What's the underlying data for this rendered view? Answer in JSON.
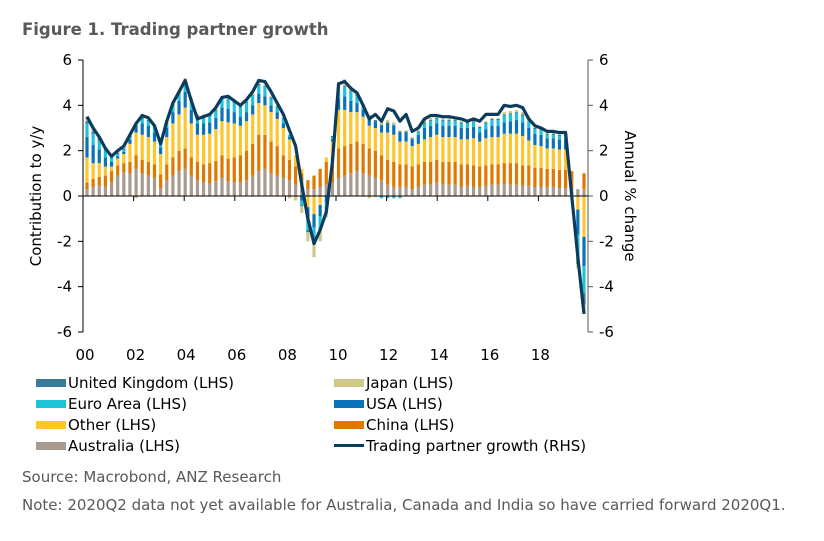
{
  "figure": {
    "title": "Figure 1. Trading partner growth",
    "source": "Source: Macrobond, ANZ Research",
    "note": "Note: 2020Q2 data not yet available for Australia, Canada and India so have carried forward 2020Q1."
  },
  "chart_data": {
    "type": "bar",
    "title": "Figure 1. Trading partner growth",
    "xlabel": "",
    "ylabel": "Contribution to y/y",
    "y2label": "Annual % change",
    "ylim": [
      -6,
      6
    ],
    "y2lim": [
      -6,
      6
    ],
    "yticks": [
      "6",
      "4",
      "2",
      "0",
      "-2",
      "-4",
      "-6"
    ],
    "y2ticks": [
      "6",
      "4",
      "2",
      "0",
      "-2",
      "-4",
      "-6"
    ],
    "xticks": [
      "00",
      "02",
      "04",
      "06",
      "08",
      "10",
      "12",
      "14",
      "16",
      "18"
    ],
    "x_frequency": "quarterly",
    "x_start": "2000Q1",
    "x_end": "2020Q2",
    "stacked": true,
    "grid": false,
    "legend_position": "bottom",
    "colors": {
      "United Kingdom (LHS)": "#3a7a9a",
      "Japan (LHS)": "#cfc888",
      "Euro Area (LHS)": "#1ec3d8",
      "USA (LHS)": "#0a72b8",
      "Other (LHS)": "#ffc52e",
      "China (LHS)": "#e07800",
      "Australia (LHS)": "#a89a8e",
      "Trading partner growth (RHS)": "#0b3c5d"
    },
    "legend": [
      {
        "name": "United Kingdom (LHS)",
        "kind": "bar"
      },
      {
        "name": "Japan (LHS)",
        "kind": "bar"
      },
      {
        "name": "Euro Area (LHS)",
        "kind": "bar"
      },
      {
        "name": "USA (LHS)",
        "kind": "bar"
      },
      {
        "name": "Other (LHS)",
        "kind": "bar"
      },
      {
        "name": "China (LHS)",
        "kind": "bar"
      },
      {
        "name": "Australia (LHS)",
        "kind": "bar"
      },
      {
        "name": "Trading partner growth (RHS)",
        "kind": "line"
      }
    ],
    "line_series": {
      "name": "Trading partner growth (RHS)",
      "values": [
        3.5,
        3.0,
        2.6,
        2.1,
        1.75,
        2.0,
        2.2,
        2.7,
        3.2,
        3.55,
        3.45,
        3.1,
        2.3,
        3.3,
        4.1,
        4.6,
        5.1,
        4.2,
        3.4,
        3.5,
        3.6,
        3.9,
        4.35,
        4.4,
        4.2,
        4.0,
        4.25,
        4.6,
        5.1,
        5.05,
        4.6,
        4.1,
        3.6,
        2.9,
        2.2,
        0.5,
        -1.0,
        -2.1,
        -1.5,
        -0.7,
        1.5,
        4.95,
        5.05,
        4.75,
        4.55,
        4.0,
        3.4,
        3.6,
        3.3,
        3.85,
        3.75,
        3.3,
        3.6,
        2.85,
        3.0,
        3.4,
        3.55,
        3.55,
        3.5,
        3.5,
        3.45,
        3.4,
        3.3,
        3.4,
        3.3,
        3.6,
        3.6,
        3.6,
        4.0,
        3.95,
        4.0,
        3.9,
        3.4,
        3.1,
        3.0,
        2.85,
        2.85,
        2.8,
        2.8,
        0.0,
        -2.7,
        -5.2
      ]
    },
    "bar_series": [
      {
        "name": "Australia (LHS)",
        "values": [
          0.3,
          0.4,
          0.45,
          0.4,
          0.6,
          0.9,
          1.05,
          1.0,
          1.2,
          1.0,
          0.9,
          0.8,
          0.35,
          0.7,
          0.9,
          1.1,
          1.2,
          0.9,
          0.7,
          0.6,
          0.55,
          0.65,
          0.8,
          0.65,
          0.6,
          0.6,
          0.7,
          0.9,
          1.1,
          1.2,
          1.0,
          0.9,
          0.8,
          0.7,
          0.5,
          0.4,
          0.3,
          0.3,
          0.4,
          0.5,
          0.6,
          0.8,
          0.9,
          1.0,
          1.1,
          1.0,
          0.9,
          0.8,
          0.7,
          0.5,
          0.4,
          0.4,
          0.4,
          0.3,
          0.4,
          0.5,
          0.5,
          0.6,
          0.5,
          0.5,
          0.5,
          0.4,
          0.45,
          0.4,
          0.4,
          0.45,
          0.5,
          0.5,
          0.55,
          0.5,
          0.5,
          0.45,
          0.45,
          0.4,
          0.4,
          0.4,
          0.4,
          0.35,
          0.35,
          0.3,
          0.3,
          0.3
        ]
      },
      {
        "name": "China (LHS)",
        "values": [
          0.3,
          0.35,
          0.4,
          0.5,
          0.5,
          0.45,
          0.4,
          0.5,
          0.6,
          0.6,
          0.6,
          0.6,
          0.6,
          0.7,
          0.8,
          0.9,
          0.9,
          0.8,
          0.8,
          0.8,
          0.9,
          0.9,
          1.0,
          1.0,
          1.1,
          1.2,
          1.3,
          1.4,
          1.6,
          1.5,
          1.4,
          1.3,
          1.0,
          0.9,
          0.8,
          0.6,
          0.4,
          0.6,
          0.8,
          1.0,
          1.2,
          1.3,
          1.3,
          1.3,
          1.3,
          1.3,
          1.2,
          1.2,
          1.1,
          1.1,
          1.1,
          1.0,
          1.0,
          1.0,
          1.0,
          1.0,
          1.0,
          1.0,
          1.0,
          1.0,
          1.0,
          1.0,
          0.95,
          0.95,
          0.9,
          0.9,
          0.9,
          0.9,
          0.9,
          0.95,
          0.95,
          0.9,
          0.9,
          0.85,
          0.85,
          0.8,
          0.8,
          0.8,
          0.8,
          0.8,
          0.0,
          0.7
        ]
      },
      {
        "name": "Other (LHS)",
        "values": [
          1.1,
          0.7,
          0.6,
          0.4,
          0.2,
          0.3,
          0.4,
          0.8,
          1.0,
          1.1,
          1.1,
          1.0,
          0.9,
          1.2,
          1.5,
          1.6,
          1.8,
          1.5,
          1.2,
          1.3,
          1.3,
          1.4,
          1.5,
          1.6,
          1.5,
          1.3,
          1.3,
          1.3,
          1.4,
          1.3,
          1.3,
          1.2,
          1.2,
          0.9,
          0.5,
          0.2,
          -0.5,
          -0.8,
          -0.4,
          0.2,
          0.6,
          1.7,
          1.6,
          1.4,
          1.3,
          1.2,
          1.0,
          1.0,
          1.0,
          1.2,
          1.2,
          1.0,
          1.0,
          0.9,
          0.9,
          1.0,
          1.1,
          1.1,
          1.1,
          1.1,
          1.1,
          1.1,
          1.1,
          1.2,
          1.1,
          1.2,
          1.2,
          1.2,
          1.3,
          1.3,
          1.3,
          1.3,
          1.1,
          1.0,
          0.95,
          0.9,
          0.9,
          0.9,
          0.9,
          0.0,
          -0.6,
          -1.8
        ]
      },
      {
        "name": "USA (LHS)",
        "values": [
          0.9,
          0.8,
          0.6,
          0.4,
          0.2,
          0.1,
          0.1,
          0.2,
          0.3,
          0.5,
          0.5,
          0.4,
          0.3,
          0.4,
          0.5,
          0.6,
          0.7,
          0.6,
          0.5,
          0.5,
          0.5,
          0.5,
          0.6,
          0.6,
          0.5,
          0.4,
          0.4,
          0.4,
          0.4,
          0.4,
          0.3,
          0.3,
          0.2,
          0.1,
          0.0,
          -0.2,
          -0.5,
          -0.6,
          -0.5,
          -0.3,
          0.1,
          0.5,
          0.6,
          0.5,
          0.4,
          0.3,
          0.3,
          0.3,
          0.3,
          0.4,
          0.4,
          0.4,
          0.4,
          0.3,
          0.4,
          0.5,
          0.5,
          0.5,
          0.5,
          0.5,
          0.5,
          0.5,
          0.5,
          0.5,
          0.4,
          0.4,
          0.5,
          0.5,
          0.5,
          0.55,
          0.6,
          0.6,
          0.55,
          0.5,
          0.5,
          0.45,
          0.45,
          0.45,
          0.45,
          0.0,
          -1.1,
          -1.3
        ]
      },
      {
        "name": "Euro Area (LHS)",
        "values": [
          0.6,
          0.5,
          0.4,
          0.3,
          0.2,
          0.1,
          0.1,
          0.1,
          0.1,
          0.2,
          0.2,
          0.2,
          0.1,
          0.2,
          0.3,
          0.3,
          0.4,
          0.4,
          0.3,
          0.3,
          0.3,
          0.3,
          0.4,
          0.4,
          0.4,
          0.4,
          0.4,
          0.4,
          0.4,
          0.4,
          0.3,
          0.2,
          0.2,
          0.1,
          0.0,
          -0.2,
          -0.5,
          -0.6,
          -0.5,
          -0.3,
          0.1,
          0.3,
          0.4,
          0.4,
          0.3,
          0.2,
          0.1,
          0.0,
          -0.1,
          -0.1,
          -0.1,
          -0.1,
          0.0,
          0.0,
          0.1,
          0.2,
          0.2,
          0.2,
          0.2,
          0.2,
          0.2,
          0.2,
          0.2,
          0.2,
          0.2,
          0.25,
          0.25,
          0.25,
          0.3,
          0.3,
          0.3,
          0.3,
          0.25,
          0.2,
          0.2,
          0.15,
          0.15,
          0.15,
          0.15,
          0.0,
          -1.0,
          -1.2
        ]
      },
      {
        "name": "United Kingdom (LHS)",
        "values": [
          0.1,
          0.1,
          0.1,
          0.05,
          0.05,
          0.05,
          0.05,
          0.05,
          0.05,
          0.05,
          0.05,
          0.05,
          0.05,
          0.05,
          0.05,
          0.05,
          0.1,
          0.05,
          0.05,
          0.05,
          0.05,
          0.05,
          0.05,
          0.05,
          0.05,
          0.05,
          0.05,
          0.05,
          0.05,
          0.05,
          0.05,
          0.05,
          0.05,
          0.0,
          0.0,
          -0.05,
          -0.1,
          -0.1,
          -0.1,
          -0.05,
          0.05,
          0.05,
          0.05,
          0.05,
          0.05,
          0.05,
          0.05,
          0.05,
          0.05,
          0.05,
          0.05,
          0.05,
          0.05,
          0.05,
          0.05,
          0.05,
          0.05,
          0.05,
          0.05,
          0.05,
          0.05,
          0.05,
          0.05,
          0.05,
          0.05,
          0.05,
          0.05,
          0.05,
          0.05,
          0.05,
          0.05,
          0.05,
          0.05,
          0.05,
          0.05,
          0.05,
          0.05,
          0.05,
          0.05,
          0.0,
          -0.3,
          -0.5
        ]
      },
      {
        "name": "Japan (LHS)",
        "values": [
          0.2,
          0.15,
          0.05,
          0.05,
          0.0,
          0.1,
          0.1,
          0.05,
          -0.1,
          0.1,
          0.1,
          0.05,
          0.0,
          0.1,
          0.1,
          0.1,
          0.1,
          0.05,
          0.05,
          0.05,
          0.05,
          0.05,
          0.05,
          0.1,
          0.1,
          0.05,
          0.05,
          0.1,
          0.1,
          0.1,
          0.05,
          0.05,
          0.0,
          -0.1,
          -0.2,
          -0.3,
          -0.4,
          -0.6,
          -0.5,
          -0.3,
          0.0,
          0.3,
          0.3,
          0.2,
          0.15,
          0.0,
          -0.1,
          -0.05,
          0.1,
          0.1,
          0.1,
          0.05,
          0.05,
          0.05,
          0.05,
          0.1,
          0.1,
          0.1,
          0.1,
          0.1,
          0.05,
          0.05,
          0.05,
          0.05,
          0.05,
          0.05,
          0.05,
          0.05,
          0.1,
          0.1,
          0.1,
          0.1,
          0.05,
          0.05,
          0.05,
          0.05,
          0.05,
          0.05,
          0.05,
          0.0,
          -0.2,
          -0.4
        ]
      }
    ]
  }
}
